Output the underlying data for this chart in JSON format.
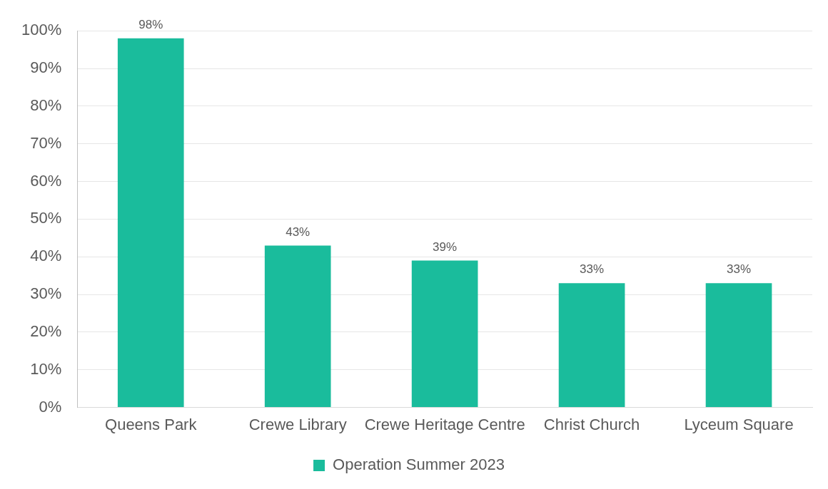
{
  "chart_data": {
    "type": "bar",
    "categories": [
      "Queens Park",
      "Crewe Library",
      "Crewe Heritage Centre",
      "Christ Church",
      "Lyceum Square"
    ],
    "series": [
      {
        "name": "Operation Summer 2023",
        "color": "#1abc9c",
        "values": [
          98,
          43,
          39,
          33,
          33
        ],
        "value_labels": [
          "98%",
          "43%",
          "39%",
          "33%",
          "33%"
        ]
      }
    ],
    "ylim": [
      0,
      100
    ],
    "yticks": [
      {
        "value": 0,
        "label": "0%"
      },
      {
        "value": 10,
        "label": "10%"
      },
      {
        "value": 20,
        "label": "20%"
      },
      {
        "value": 30,
        "label": "30%"
      },
      {
        "value": 40,
        "label": "40%"
      },
      {
        "value": 50,
        "label": "50%"
      },
      {
        "value": 60,
        "label": "60%"
      },
      {
        "value": 70,
        "label": "70%"
      },
      {
        "value": 80,
        "label": "80%"
      },
      {
        "value": 90,
        "label": "90%"
      },
      {
        "value": 100,
        "label": "100%"
      }
    ],
    "grid": "y",
    "legend": "bottom"
  }
}
